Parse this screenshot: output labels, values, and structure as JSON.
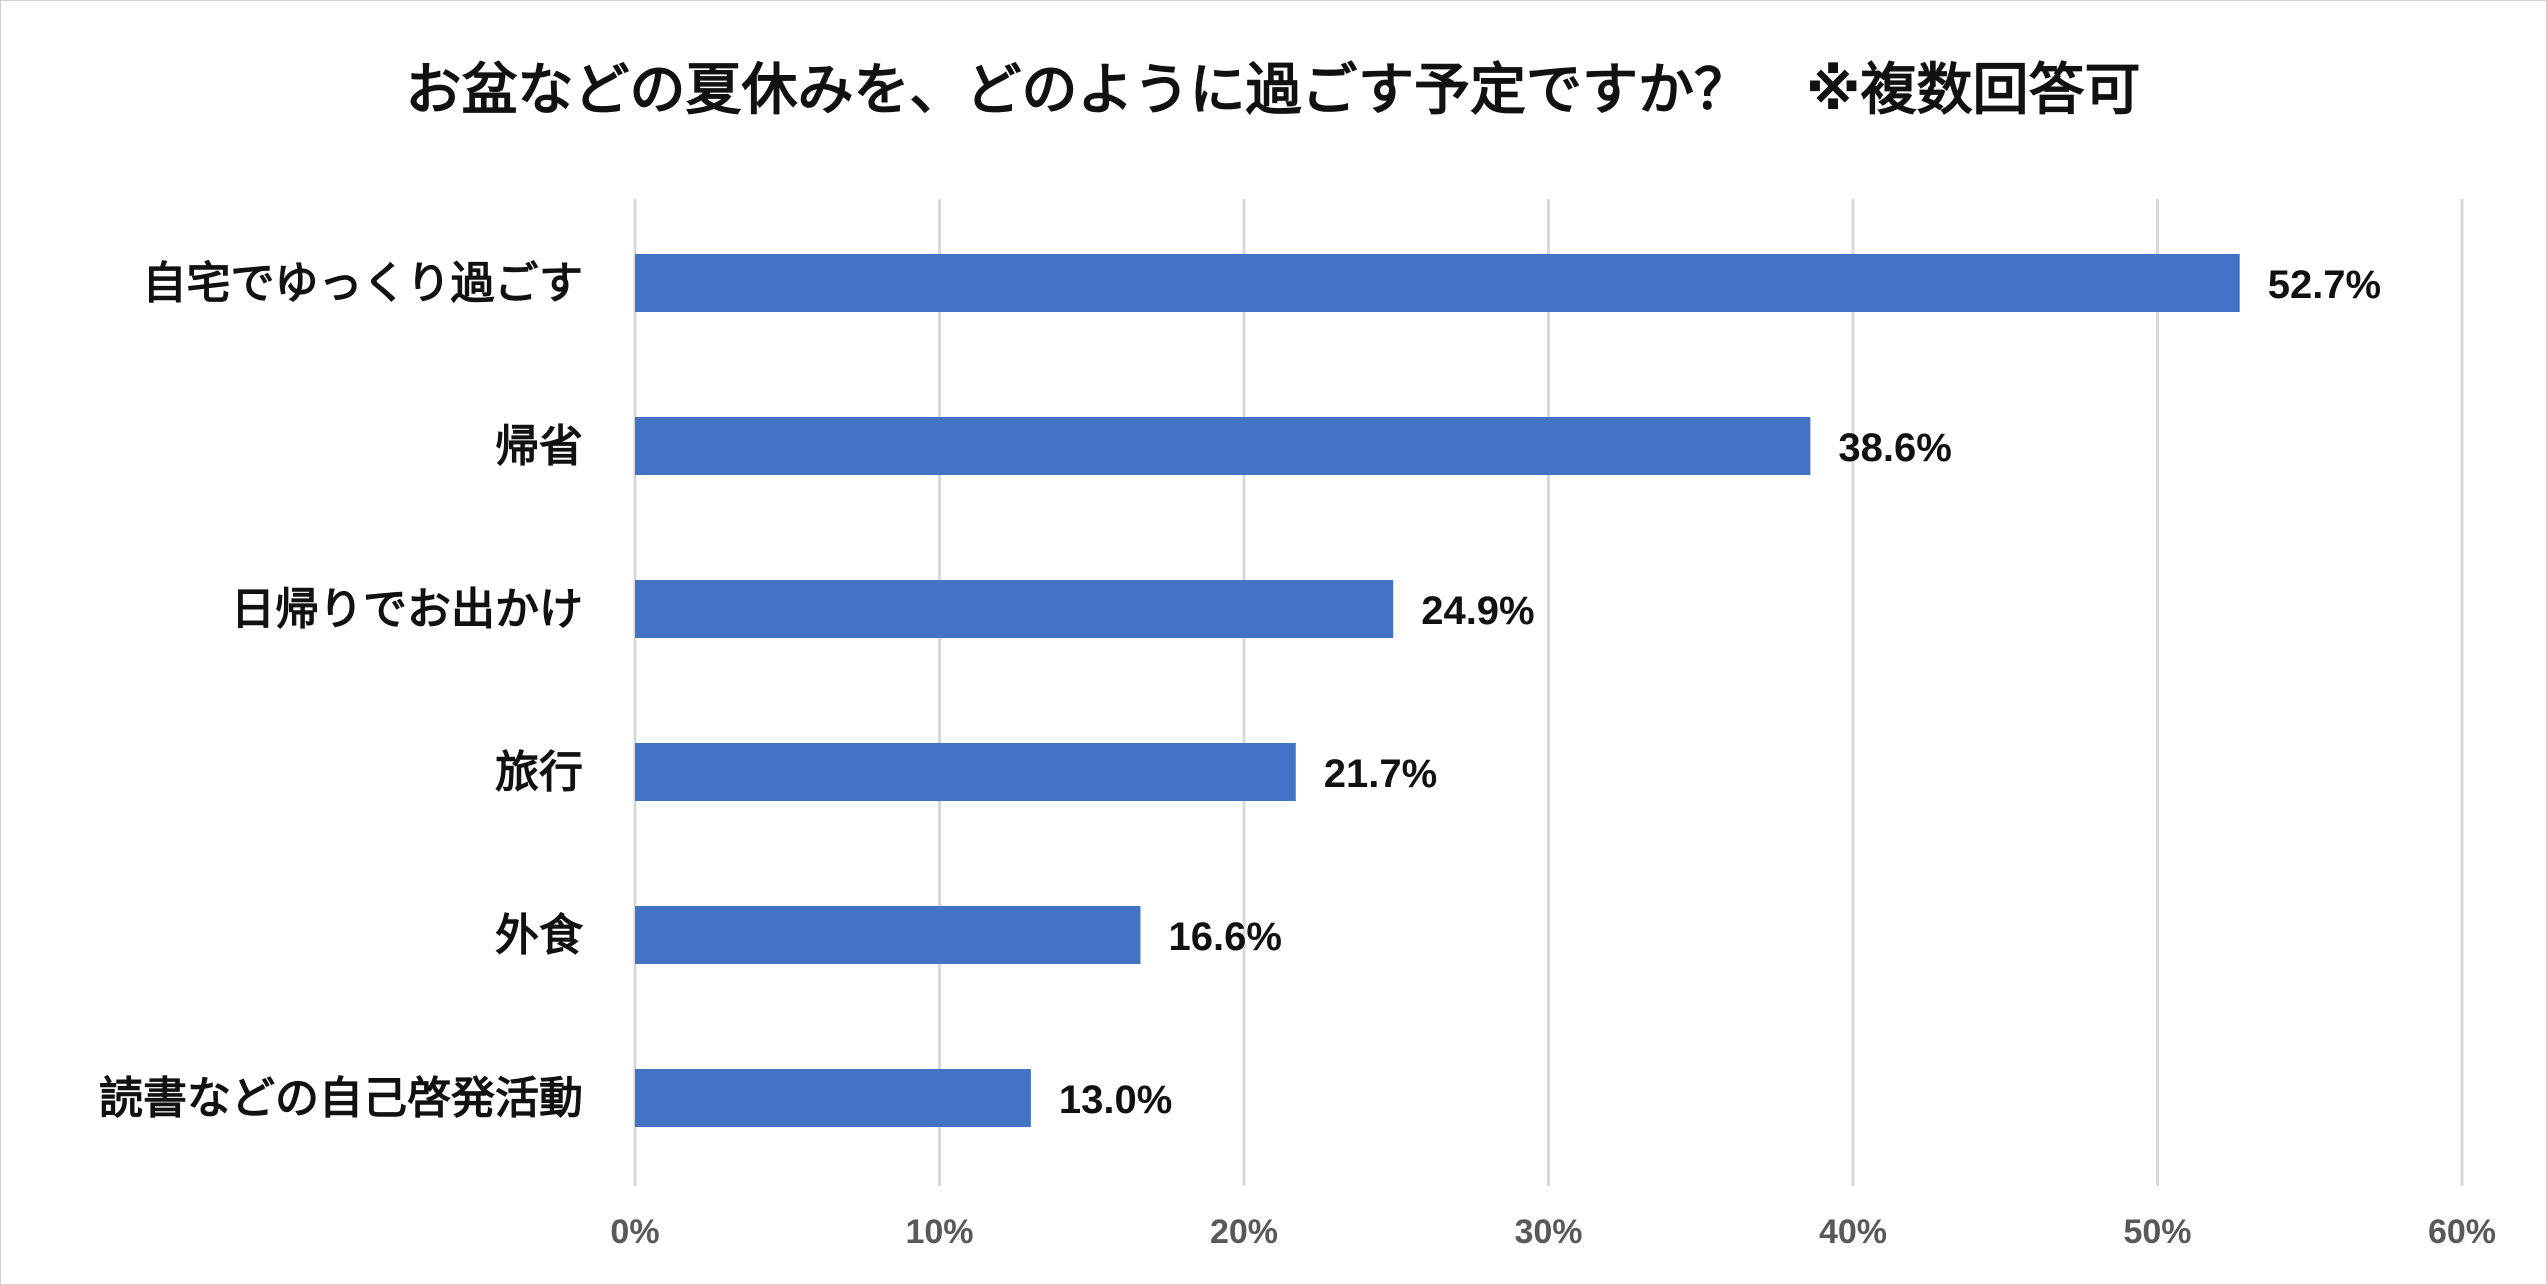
{
  "chart_data": {
    "type": "bar",
    "orientation": "horizontal",
    "title": "お盆などの夏休みを、どのように過ごす予定ですか？　※複数回答可",
    "categories": [
      "自宅でゆっくり過ごす",
      "帰省",
      "日帰りでお出かけ",
      "旅行",
      "外食",
      "読書などの自己啓発活動"
    ],
    "values": [
      52.7,
      38.6,
      24.9,
      21.7,
      16.6,
      13.0
    ],
    "value_labels": [
      "52.7%",
      "38.6%",
      "24.9%",
      "21.7%",
      "16.6%",
      "13.0%"
    ],
    "xlim": [
      0,
      60
    ],
    "x_ticks": [
      0,
      10,
      20,
      30,
      40,
      50,
      60
    ],
    "x_tick_labels": [
      "0%",
      "10%",
      "20%",
      "30%",
      "40%",
      "50%",
      "60%"
    ],
    "xlabel": "",
    "ylabel": "",
    "grid": true,
    "legend": "none",
    "bar_color": "#4472C4",
    "grid_color": "#D9D9D9"
  }
}
